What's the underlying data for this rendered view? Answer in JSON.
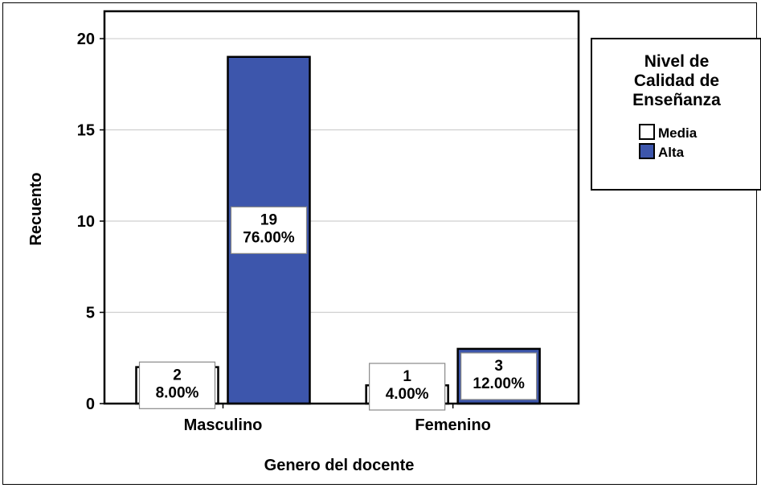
{
  "chart_data": {
    "type": "bar",
    "title": "",
    "xlabel": "Genero del docente",
    "ylabel": "Recuento",
    "categories": [
      "Masculino",
      "Femenino"
    ],
    "ylim": [
      0,
      21.5
    ],
    "yticks": [
      0,
      5,
      10,
      15,
      20
    ],
    "grid": true,
    "legend_position": "right",
    "series": [
      {
        "name": "Media",
        "color": "#ffffff",
        "values": [
          2,
          1
        ],
        "labels": [
          [
            "2",
            "8.00%"
          ],
          [
            "1",
            "4.00%"
          ]
        ]
      },
      {
        "name": "Alta",
        "color": "#3d56ac",
        "values": [
          19,
          3
        ],
        "labels": [
          [
            "19",
            "76.00%"
          ],
          [
            "3",
            "12.00%"
          ]
        ]
      }
    ],
    "legend_title": [
      "Nivel de",
      "Calidad de",
      "Enseñanza"
    ]
  }
}
